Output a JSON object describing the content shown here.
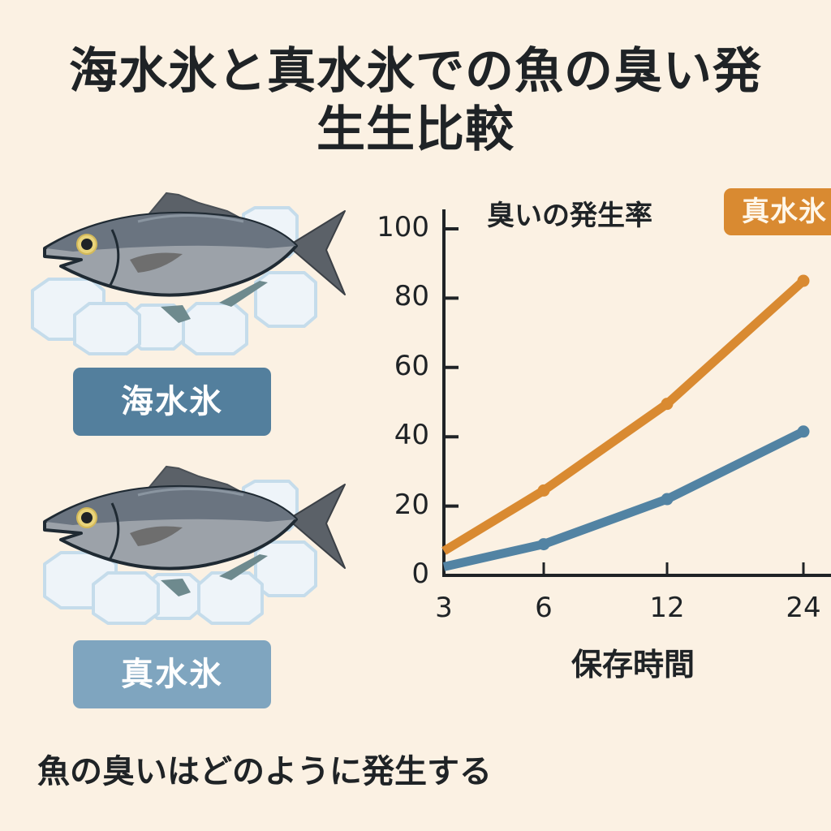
{
  "title": {
    "line1": "海水氷と真水氷での魚の臭い発",
    "line2": "生生比較"
  },
  "left_panel": {
    "items": [
      {
        "label": "海水氷",
        "color": "#537f9d",
        "illustration": "fish-on-ice"
      },
      {
        "label": "真水氷",
        "color": "#7fa5bf",
        "illustration": "fish-on-ice"
      }
    ]
  },
  "footer": {
    "text": "魚の臭いはどのように発生する"
  },
  "colors": {
    "background": "#fbf1e3",
    "fresh_ice_series": "#d98a31",
    "sea_ice_series": "#5283a3",
    "axis": "#1f2326"
  },
  "chart_data": {
    "type": "line",
    "title": "臭いの発生率",
    "xlabel": "保存時間",
    "ylabel": "",
    "x": [
      3,
      6,
      12,
      24
    ],
    "x_tick_labels": [
      "3",
      "6",
      "12",
      "24"
    ],
    "y_tick_labels": [
      "0",
      "20",
      "40",
      "60",
      "80",
      "100"
    ],
    "ylim": [
      0,
      100
    ],
    "grid": false,
    "legend": {
      "position": "top-right",
      "entries": [
        "真水氷"
      ]
    },
    "series": [
      {
        "name": "真水氷",
        "color": "#d98a31",
        "values": [
          7,
          24.5,
          49.5,
          85
        ]
      },
      {
        "name": "海水氷",
        "color": "#5283a3",
        "values": [
          2.5,
          9,
          22,
          41.5
        ]
      }
    ]
  }
}
